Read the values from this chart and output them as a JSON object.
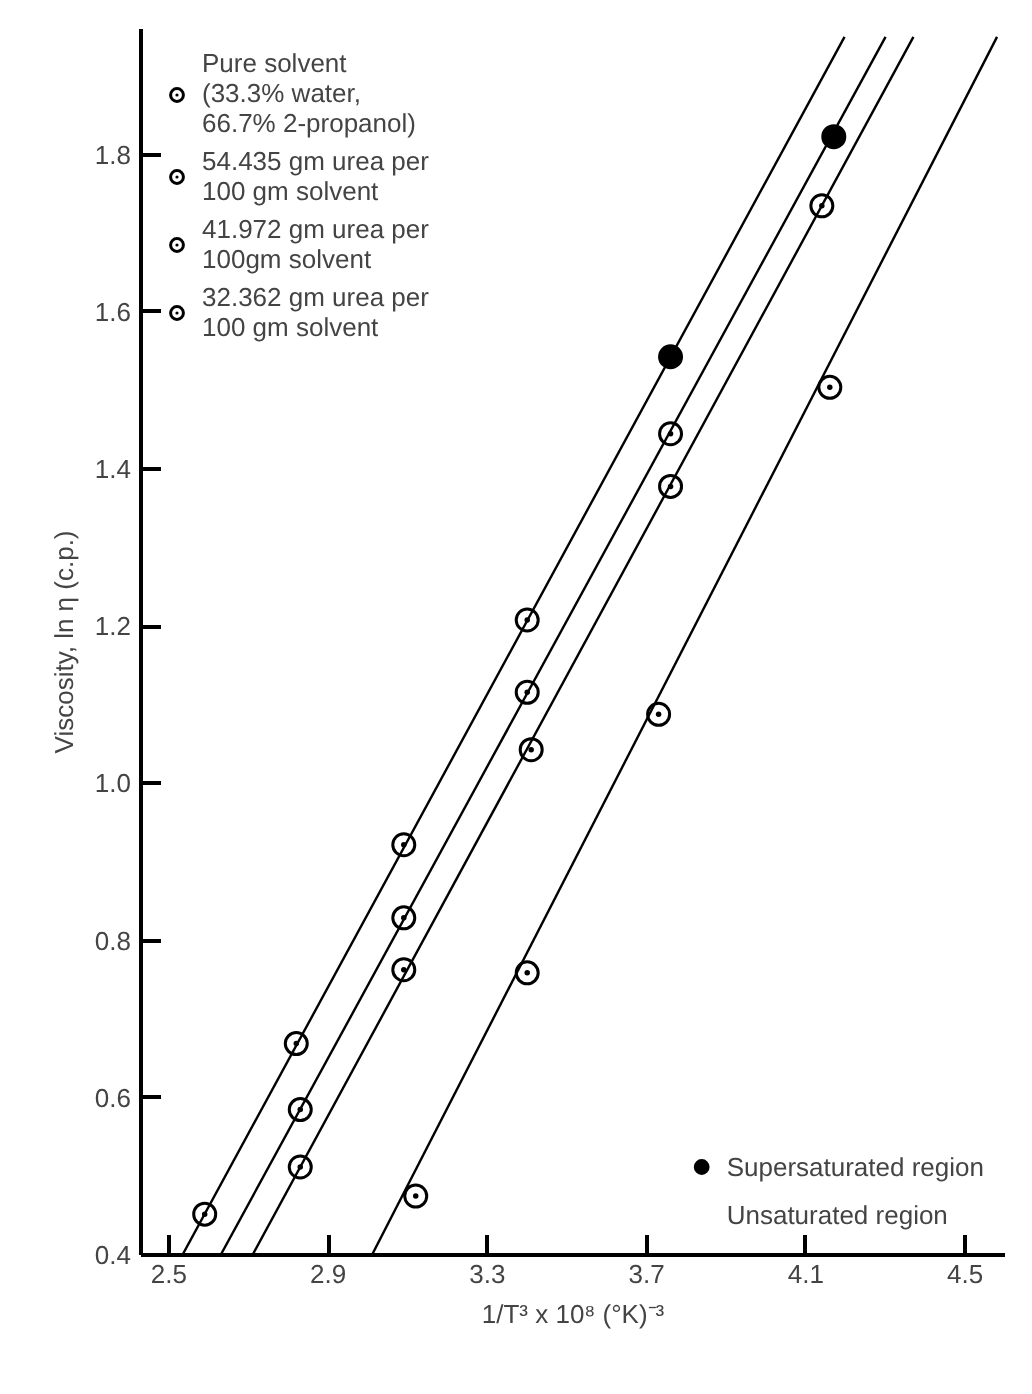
{
  "chart_data": {
    "type": "scatter",
    "xlabel": "1/T³ x 10⁸ (°K)⁻³",
    "ylabel": "Viscosity, ln η (c.p.)",
    "xlim": [
      2.43,
      4.6
    ],
    "ylim": [
      0.4,
      1.96
    ],
    "xticks": [
      2.5,
      2.9,
      3.3,
      3.7,
      4.1,
      4.5
    ],
    "yticks": [
      0.4,
      0.6,
      0.8,
      {
        "value": 1.0,
        "label": "1.0"
      },
      1.2,
      1.4,
      1.6,
      1.8
    ],
    "grid": false,
    "legend": "top left",
    "marker": "circle",
    "annotations": [
      "Unsaturated region"
    ],
    "series": [
      {
        "name": "Pure solvent (33.3% water, 66.7% 2-propanol)",
        "color": "#000000",
        "x": [
          3.12,
          3.4,
          3.73,
          4.16
        ],
        "values": [
          0.475,
          0.759,
          1.088,
          1.504
        ]
      },
      {
        "name": "54.435 gm urea per 100 gm solvent",
        "color": "#000000",
        "x": [
          2.59,
          2.82,
          3.09,
          3.4
        ],
        "values": [
          0.452,
          0.669,
          0.922,
          1.208
        ]
      },
      {
        "name": "41.972 gm urea per 100gm solvent",
        "color": "#000000",
        "x": [
          2.83,
          3.09,
          3.4,
          3.76
        ],
        "values": [
          0.585,
          0.829,
          1.116,
          1.445
        ]
      },
      {
        "name": "32.362 gm urea per 100 gm solvent",
        "color": "#000000",
        "x": [
          2.83,
          3.09,
          3.41,
          3.76,
          4.14
        ],
        "values": [
          0.512,
          0.763,
          1.043,
          1.378,
          1.735
        ]
      },
      {
        "name": "Supersaturated region",
        "color": "#000000",
        "x": [
          3.76,
          4.17
        ],
        "values": [
          1.543,
          1.823
        ]
      },
      {
        "type": "line",
        "marker": "none",
        "color": "#000000",
        "x": [
          3.01,
          4.58
        ],
        "values": [
          0.4,
          1.95
        ]
      },
      {
        "type": "line",
        "marker": "none",
        "color": "#000000",
        "x": [
          2.534,
          4.197
        ],
        "values": [
          0.4,
          1.95
        ]
      },
      {
        "type": "line",
        "marker": "none",
        "color": "#000000",
        "x": [
          2.63,
          4.3
        ],
        "values": [
          0.4,
          1.95
        ]
      },
      {
        "type": "line",
        "marker": "none",
        "color": "#000000",
        "x": [
          2.71,
          4.37
        ],
        "values": [
          0.4,
          1.95
        ]
      }
    ]
  }
}
